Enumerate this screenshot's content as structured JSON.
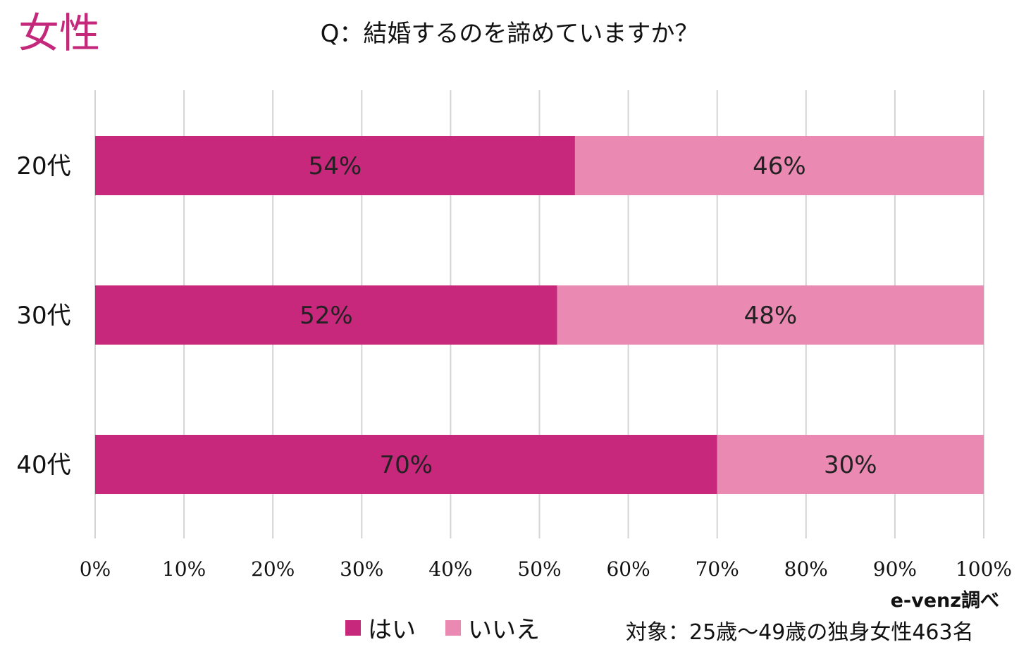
{
  "header": {
    "gender_label": "女性",
    "title": "Q：結婚するのを諦めていますか？"
  },
  "colors": {
    "accent": "#c4287a",
    "yes": "#c8287c",
    "no": "#ea89b2",
    "grid": "#d4d4d4"
  },
  "chart_data": {
    "type": "bar",
    "orientation": "horizontal",
    "stacked": "percent",
    "title": "Q：結婚するのを諦めていますか？",
    "categories": [
      "20代",
      "30代",
      "40代"
    ],
    "series": [
      {
        "name": "はい",
        "values": [
          54,
          52,
          70
        ],
        "labels": [
          "54%",
          "52%",
          "70%"
        ]
      },
      {
        "name": "いいえ",
        "values": [
          46,
          48,
          30
        ],
        "labels": [
          "46%",
          "48%",
          "30%"
        ]
      }
    ],
    "xlim": [
      0,
      100
    ],
    "xticks": [
      "0%",
      "10%",
      "20%",
      "30%",
      "40%",
      "50%",
      "60%",
      "70%",
      "80%",
      "90%",
      "100%"
    ],
    "grid": true,
    "legend_position": "bottom"
  },
  "footer": {
    "source": "e-venz調べ",
    "note": "対象：25歳〜49歳の独身女性463名"
  }
}
